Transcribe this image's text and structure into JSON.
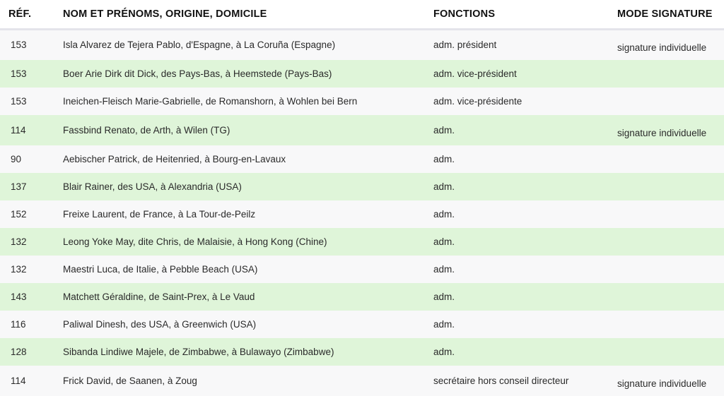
{
  "headers": {
    "ref": "RÉF.",
    "name": "NOM ET PRÉNOMS, ORIGINE, DOMICILE",
    "functions": "FONCTIONS",
    "signature": "MODE SIGNATURE"
  },
  "colors": {
    "row_odd": "#f8f8f9",
    "row_even": "#dff5d9",
    "header_border": "#e4e4ea"
  },
  "rows": [
    {
      "ref": "153",
      "name": "Isla Alvarez de Tejera Pablo, d'Espagne, à La Coruña (Espagne)",
      "function": "adm. président",
      "signature": "signature individuelle"
    },
    {
      "ref": "153",
      "name": "Boer Arie Dirk dit Dick, des Pays-Bas, à Heemstede (Pays-Bas)",
      "function": "adm. vice-président",
      "signature": ""
    },
    {
      "ref": "153",
      "name": "Ineichen-Fleisch Marie-Gabrielle, de Romanshorn, à Wohlen bei Bern",
      "function": "adm. vice-présidente",
      "signature": ""
    },
    {
      "ref": "114",
      "name": "Fassbind Renato, de Arth, à Wilen (TG)",
      "function": "adm.",
      "signature": "signature individuelle"
    },
    {
      "ref": "90",
      "name": "Aebischer Patrick, de Heitenried, à Bourg-en-Lavaux",
      "function": "adm.",
      "signature": ""
    },
    {
      "ref": "137",
      "name": "Blair Rainer, des USA, à Alexandria (USA)",
      "function": "adm.",
      "signature": ""
    },
    {
      "ref": "152",
      "name": "Freixe Laurent, de France, à La Tour-de-Peilz",
      "function": "adm.",
      "signature": ""
    },
    {
      "ref": "132",
      "name": "Leong Yoke May, dite Chris, de Malaisie, à Hong Kong (Chine)",
      "function": "adm.",
      "signature": ""
    },
    {
      "ref": "132",
      "name": "Maestri Luca, de Italie, à Pebble Beach (USA)",
      "function": "adm.",
      "signature": ""
    },
    {
      "ref": "143",
      "name": "Matchett Géraldine, de Saint-Prex, à Le Vaud",
      "function": "adm.",
      "signature": ""
    },
    {
      "ref": "116",
      "name": "Paliwal Dinesh, des USA, à Greenwich (USA)",
      "function": "adm.",
      "signature": ""
    },
    {
      "ref": "128",
      "name": "Sibanda Lindiwe Majele, de Zimbabwe, à Bulawayo (Zimbabwe)",
      "function": "adm.",
      "signature": ""
    },
    {
      "ref": "114",
      "name": "Frick David, de Saanen, à Zoug",
      "function": "secrétaire hors conseil directeur",
      "signature": "signature individuelle"
    }
  ]
}
